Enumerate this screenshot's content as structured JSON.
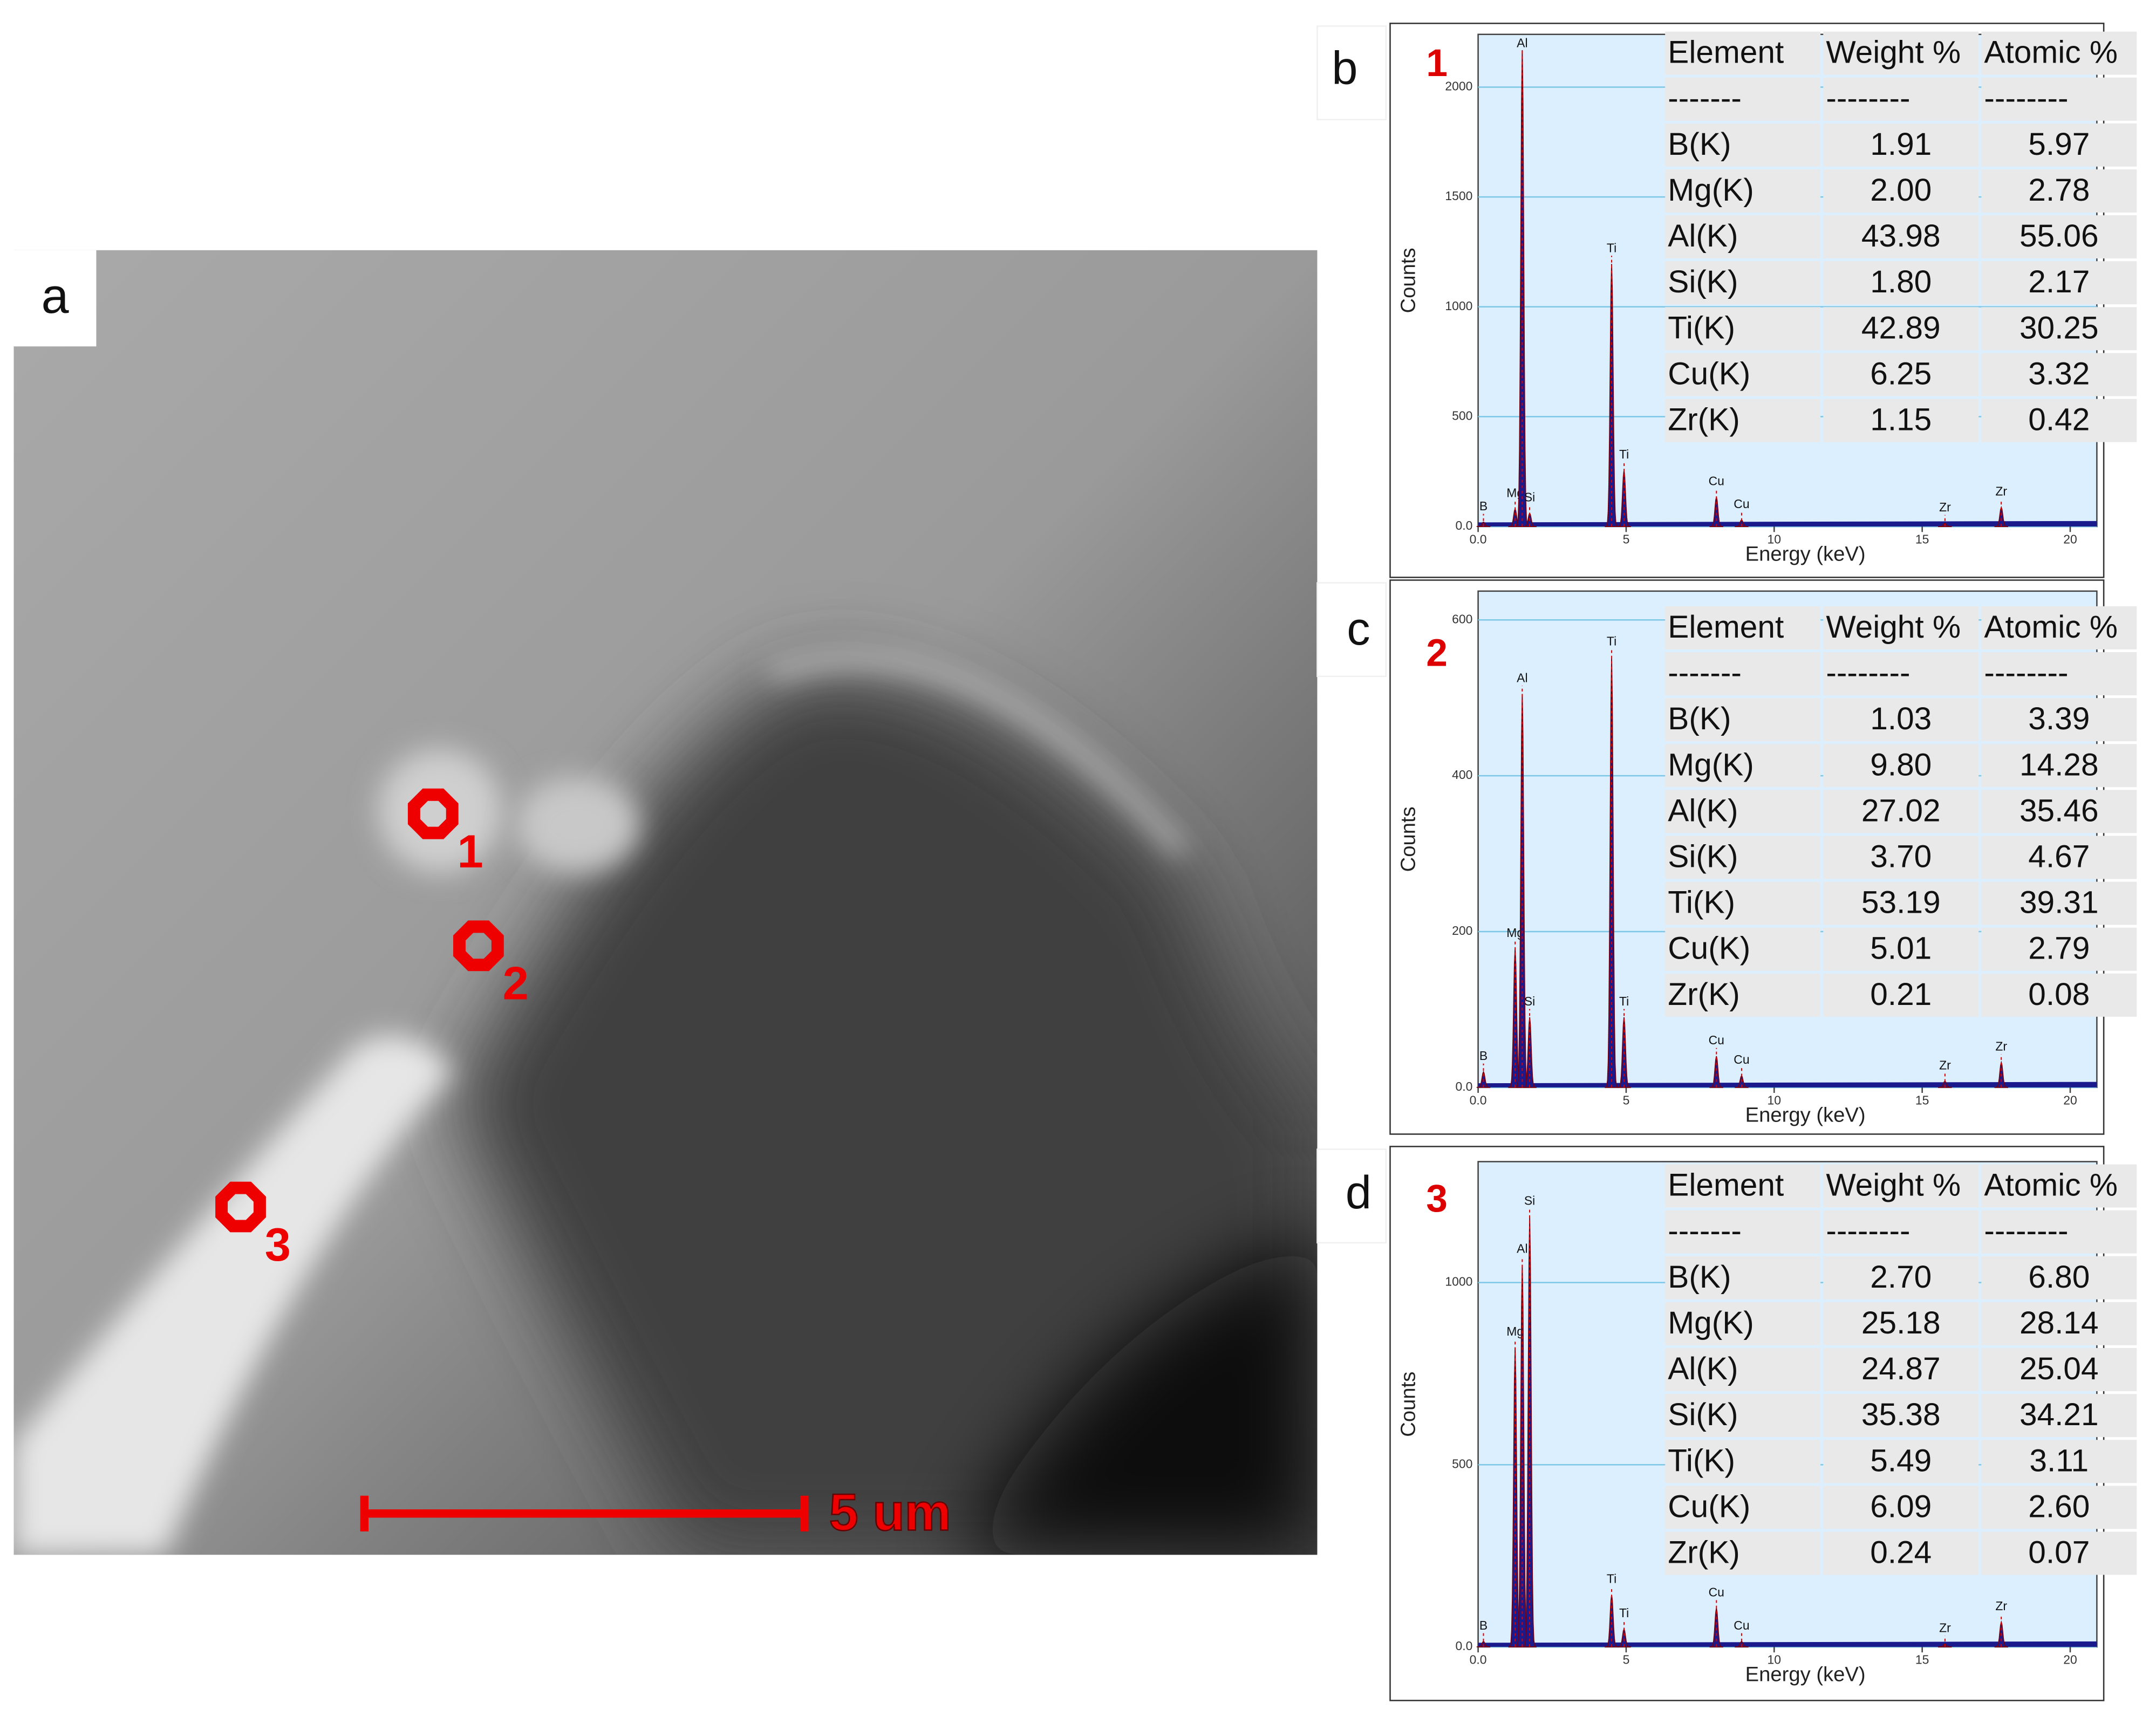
{
  "panel_a": {
    "label": "a",
    "markers": [
      {
        "label": "1"
      },
      {
        "label": "2"
      },
      {
        "label": "3"
      }
    ],
    "scale_bar": "5 um"
  },
  "spectra": [
    {
      "panel": "b",
      "point": "1",
      "y_label": "Counts",
      "x_label": "Energy (keV)",
      "xlim": [
        0,
        20.9
      ],
      "xticks": [
        {
          "value": 0,
          "label": "0.0"
        },
        5,
        10,
        15,
        20
      ],
      "ylim": [
        0,
        2240
      ],
      "yticks": [
        {
          "value": 0,
          "label": "0.0"
        },
        500,
        1000,
        1500,
        2000
      ],
      "peaks": [
        {
          "label": "B",
          "energy": 0.18,
          "counts": 20
        },
        {
          "label": "Mg",
          "energy": 1.25,
          "counts": 80
        },
        {
          "label": "Al",
          "energy": 1.49,
          "counts": 2168
        },
        {
          "label": "Si",
          "energy": 1.74,
          "counts": 60
        },
        {
          "label": "Ti",
          "energy": 4.51,
          "counts": 1195
        },
        {
          "label": "Ti",
          "energy": 4.93,
          "counts": 255
        },
        {
          "label": "Cu",
          "energy": 8.05,
          "counts": 134
        },
        {
          "label": "Cu",
          "energy": 8.9,
          "counts": 30
        },
        {
          "label": "Zr",
          "energy": 15.77,
          "counts": 15
        },
        {
          "label": "Zr",
          "energy": 17.67,
          "counts": 87
        }
      ],
      "table": {
        "header": [
          "Element",
          "Weight %",
          "Atomic %"
        ],
        "separator": [
          "-------",
          "--------",
          "--------"
        ],
        "rows": [
          [
            "B(K)",
            "1.91",
            "5.97"
          ],
          [
            "Mg(K)",
            "2.00",
            "2.78"
          ],
          [
            "Al(K)",
            "43.98",
            "55.06"
          ],
          [
            "Si(K)",
            "1.80",
            "2.17"
          ],
          [
            "Ti(K)",
            "42.89",
            "30.25"
          ],
          [
            "Cu(K)",
            "6.25",
            "3.32"
          ],
          [
            "Zr(K)",
            "1.15",
            "0.42"
          ]
        ]
      }
    },
    {
      "panel": "c",
      "point": "2",
      "y_label": "Counts",
      "x_label": "Energy (keV)",
      "xlim": [
        0,
        20.9
      ],
      "xticks": [
        {
          "value": 0,
          "label": "0.0"
        },
        5,
        10,
        15,
        20
      ],
      "ylim": [
        0,
        637
      ],
      "yticks": [
        {
          "value": 0,
          "label": "0.0"
        },
        200,
        400,
        600
      ],
      "peaks": [
        {
          "label": "B",
          "energy": 0.18,
          "counts": 20
        },
        {
          "label": "Mg",
          "energy": 1.25,
          "counts": 178
        },
        {
          "label": "Al",
          "energy": 1.49,
          "counts": 505
        },
        {
          "label": "Si",
          "energy": 1.74,
          "counts": 90
        },
        {
          "label": "Ti",
          "energy": 4.51,
          "counts": 552
        },
        {
          "label": "Ti",
          "energy": 4.93,
          "counts": 90
        },
        {
          "label": "Cu",
          "energy": 8.05,
          "counts": 40
        },
        {
          "label": "Cu",
          "energy": 8.9,
          "counts": 15
        },
        {
          "label": "Zr",
          "energy": 15.77,
          "counts": 8
        },
        {
          "label": "Zr",
          "energy": 17.67,
          "counts": 32
        }
      ],
      "table": {
        "header": [
          "Element",
          "Weight %",
          "Atomic %"
        ],
        "separator": [
          "-------",
          "--------",
          "--------"
        ],
        "rows": [
          [
            "B(K)",
            "1.03",
            "3.39"
          ],
          [
            "Mg(K)",
            "9.80",
            "14.28"
          ],
          [
            "Al(K)",
            "27.02",
            "35.46"
          ],
          [
            "Si(K)",
            "3.70",
            "4.67"
          ],
          [
            "Ti(K)",
            "53.19",
            "39.31"
          ],
          [
            "Cu(K)",
            "5.01",
            "2.79"
          ],
          [
            "Zr(K)",
            "0.21",
            "0.08"
          ]
        ]
      }
    },
    {
      "panel": "d",
      "point": "3",
      "y_label": "Counts",
      "x_label": "Energy (keV)",
      "xlim": [
        0,
        20.9
      ],
      "xticks": [
        {
          "value": 0,
          "label": "0.0"
        },
        5,
        10,
        15,
        20
      ],
      "ylim": [
        0,
        1332
      ],
      "yticks": [
        {
          "value": 0,
          "label": "0.0"
        },
        500,
        1000
      ],
      "peaks": [
        {
          "label": "B",
          "energy": 0.18,
          "counts": 15
        },
        {
          "label": "Mg",
          "energy": 1.25,
          "counts": 822
        },
        {
          "label": "Al",
          "energy": 1.49,
          "counts": 1049
        },
        {
          "label": "Si",
          "energy": 1.74,
          "counts": 1181
        },
        {
          "label": "Ti",
          "energy": 4.51,
          "counts": 143
        },
        {
          "label": "Ti",
          "energy": 4.93,
          "counts": 49
        },
        {
          "label": "Cu",
          "energy": 8.05,
          "counts": 106
        },
        {
          "label": "Cu",
          "energy": 8.9,
          "counts": 15
        },
        {
          "label": "Zr",
          "energy": 15.77,
          "counts": 8
        },
        {
          "label": "Zr",
          "energy": 17.67,
          "counts": 68
        }
      ],
      "table": {
        "header": [
          "Element",
          "Weight %",
          "Atomic %"
        ],
        "separator": [
          "-------",
          "--------",
          "--------"
        ],
        "rows": [
          [
            "B(K)",
            "2.70",
            "6.80"
          ],
          [
            "Mg(K)",
            "25.18",
            "28.14"
          ],
          [
            "Al(K)",
            "24.87",
            "25.04"
          ],
          [
            "Si(K)",
            "35.38",
            "34.21"
          ],
          [
            "Ti(K)",
            "5.49",
            "3.11"
          ],
          [
            "Cu(K)",
            "6.09",
            "2.60"
          ],
          [
            "Zr(K)",
            "0.24",
            "0.07"
          ]
        ]
      }
    }
  ]
}
